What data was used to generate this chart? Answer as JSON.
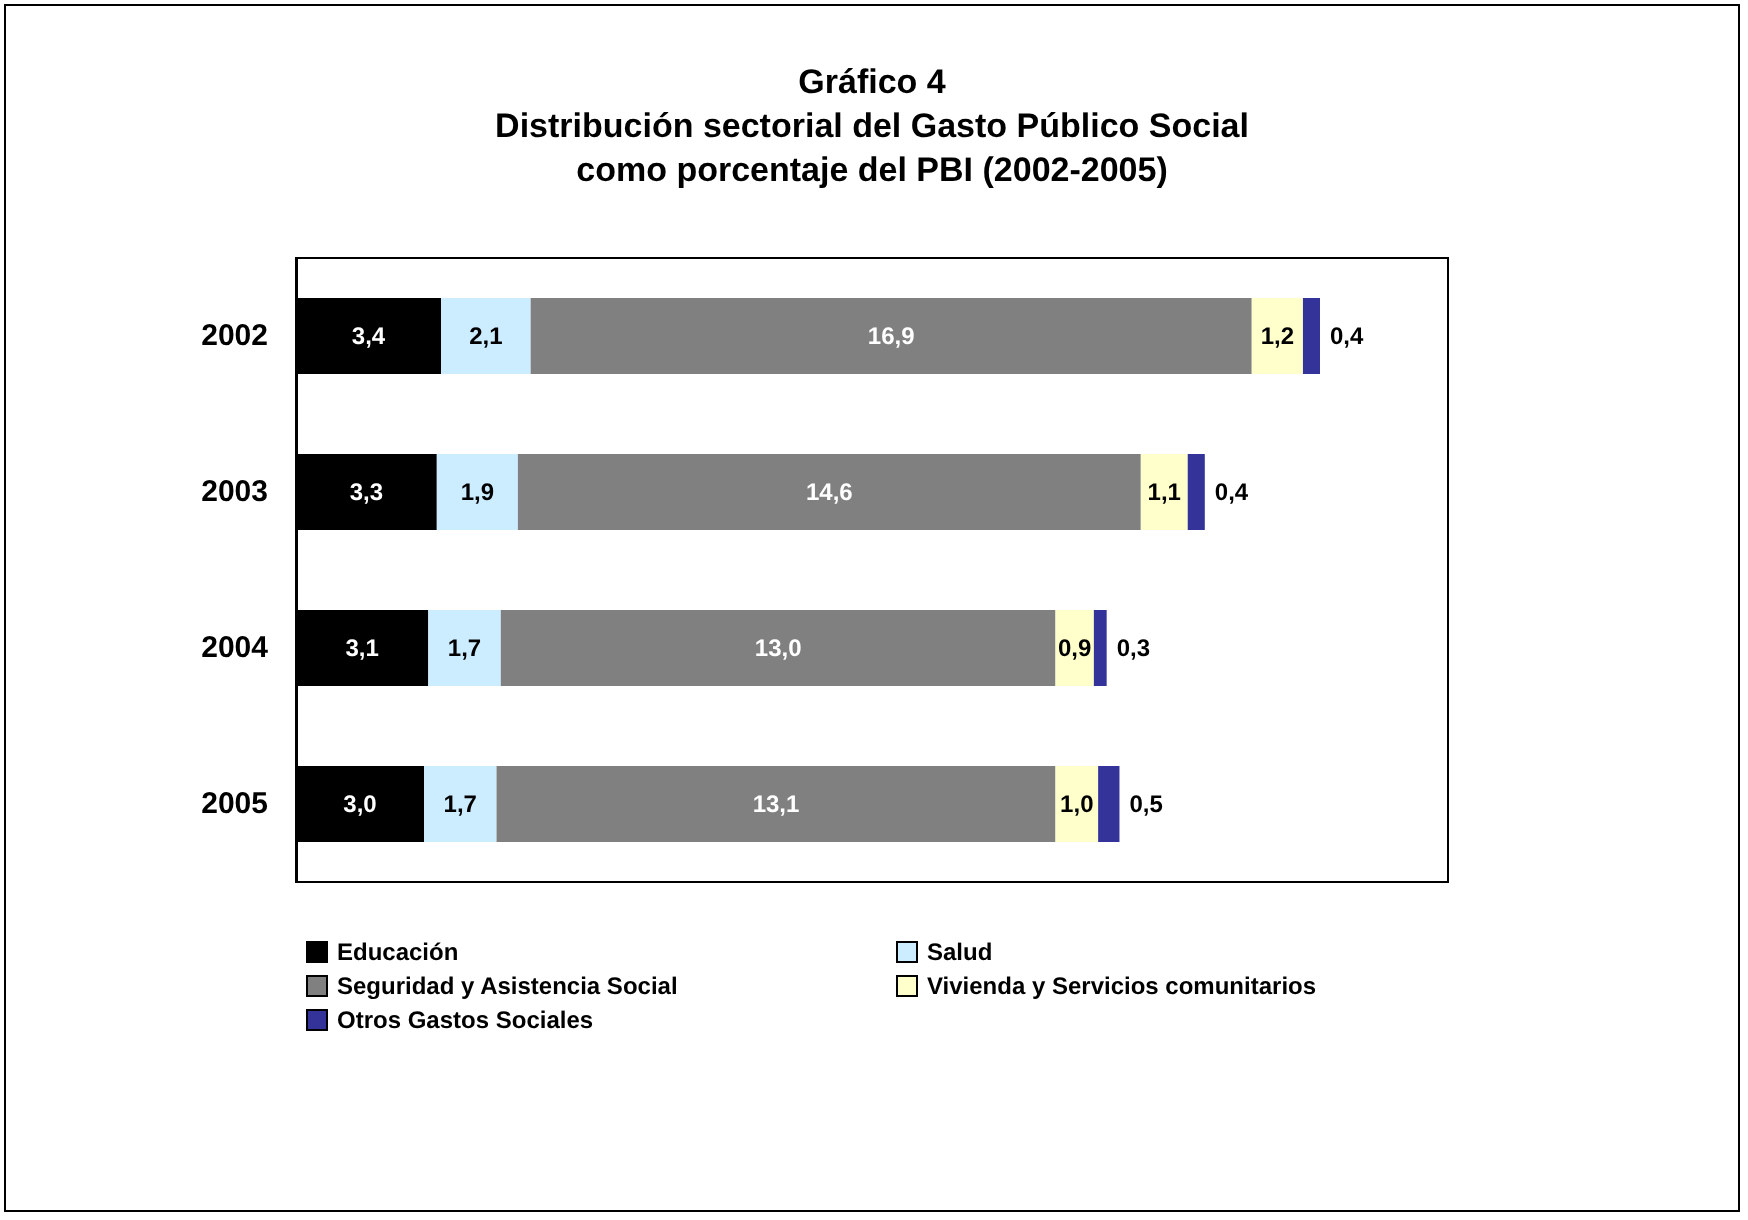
{
  "chart_data": {
    "type": "bar",
    "orientation": "horizontal",
    "stacked": true,
    "title": "Gráfico 4\nDistribución sectorial del Gasto Público Social\ncomo porcentaje del PBI (2002-2005)",
    "categories": [
      "2002",
      "2003",
      "2004",
      "2005"
    ],
    "series": [
      {
        "name": "Educación",
        "color": "#000000",
        "values": [
          3.4,
          3.3,
          3.1,
          3.0
        ],
        "value_labels": [
          "3,4",
          "3,3",
          "3,1",
          "3,0"
        ]
      },
      {
        "name": "Salud",
        "color": "#ccecff",
        "values": [
          2.1,
          1.9,
          1.7,
          1.7
        ],
        "value_labels": [
          "2,1",
          "1,9",
          "1,7",
          "1,7"
        ]
      },
      {
        "name": "Seguridad y Asistencia Social",
        "color": "#808080",
        "values": [
          16.9,
          14.6,
          13.0,
          13.1
        ],
        "value_labels": [
          "16,9",
          "14,6",
          "13,0",
          "13,1"
        ]
      },
      {
        "name": "Vivienda y Servicios comunitarios",
        "color": "#ffffcc",
        "values": [
          1.2,
          1.1,
          0.9,
          1.0
        ],
        "value_labels": [
          "1,2",
          "1,1",
          "0,9",
          "1,0"
        ]
      },
      {
        "name": "Otros Gastos Sociales",
        "color": "#333399",
        "values": [
          0.4,
          0.4,
          0.3,
          0.5
        ],
        "value_labels": [
          "0,4",
          "0,4",
          "0,3",
          "0,5"
        ]
      }
    ],
    "legend": "bottom"
  }
}
